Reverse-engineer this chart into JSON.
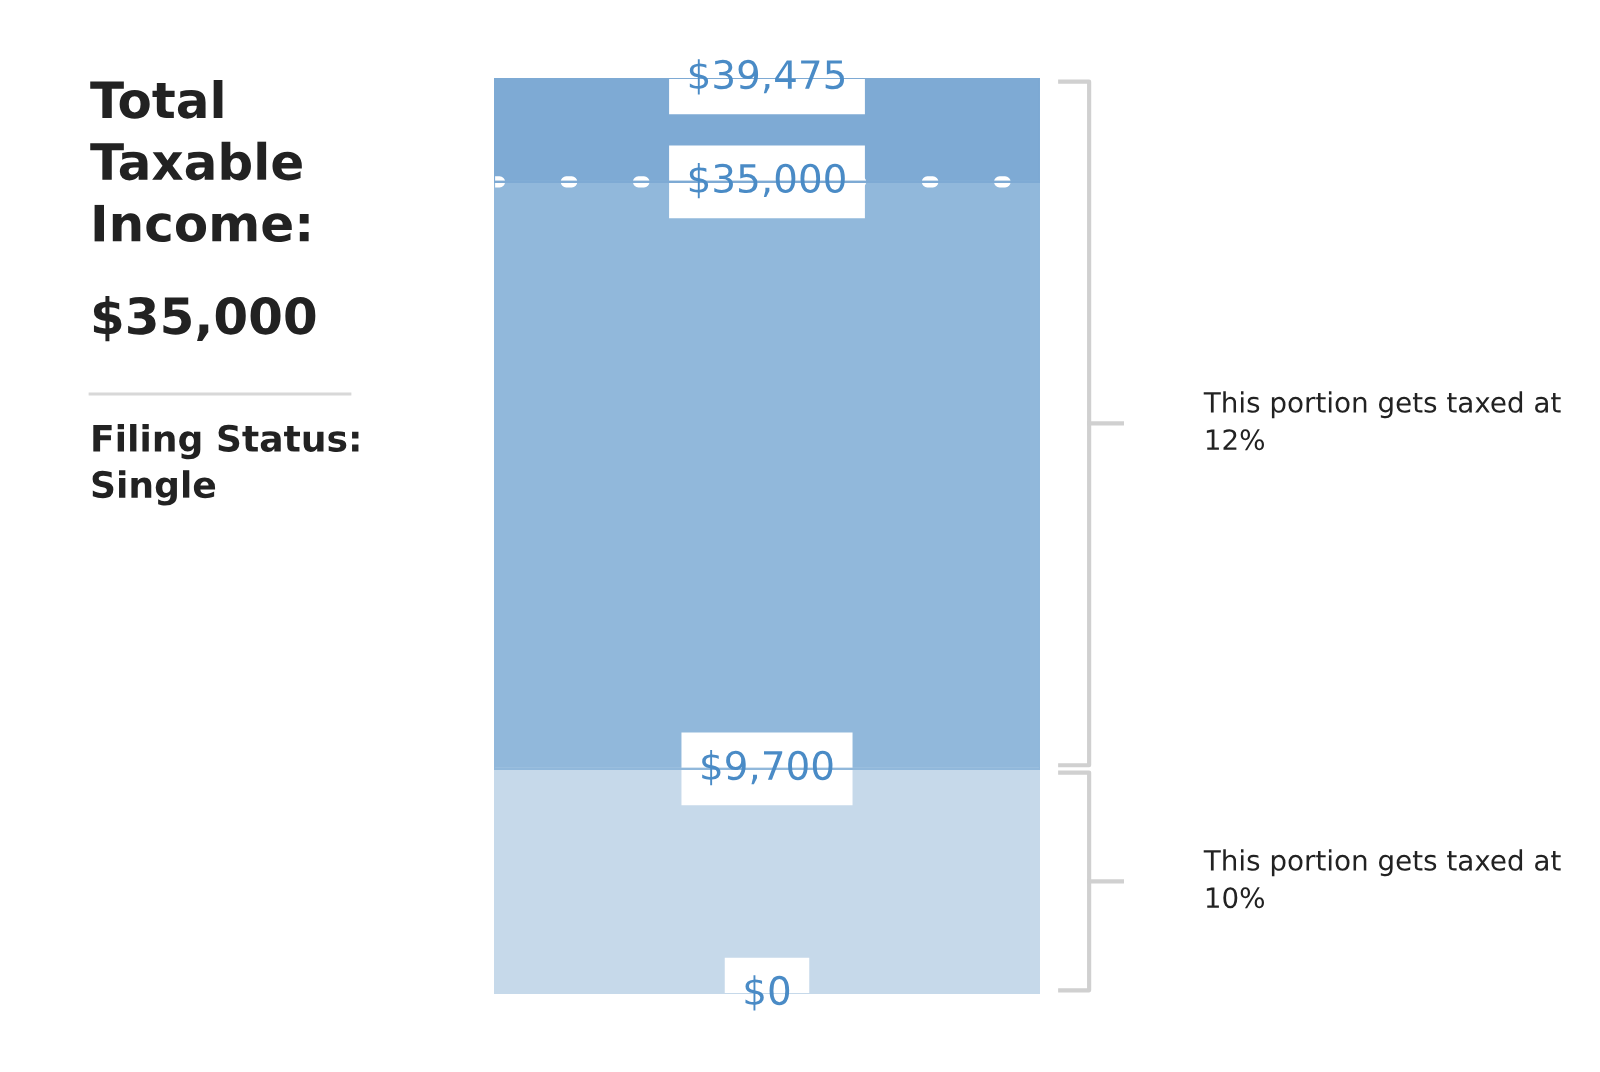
{
  "chart_data": {
    "type": "bar",
    "stacked": true,
    "title": "Total Taxable Income:",
    "annotations": [
      "$35,000",
      "Filing Status: Single",
      "This portion gets taxed at 12%",
      "This portion gets taxed at 10%"
    ],
    "categories": [
      null
    ],
    "series": [
      {
        "color": "#c6d9ea",
        "values": [
          9700
        ]
      },
      {
        "color": "#91b8db",
        "values": [
          25300
        ]
      },
      {
        "color": "#7eaad4",
        "values": [
          4475
        ]
      }
    ],
    "ylim": [
      0,
      39475
    ],
    "yticks": [
      {
        "value": 0,
        "label": "$0"
      },
      {
        "value": 9700,
        "label": "$9,700"
      },
      {
        "value": 35000,
        "label": "$35,000"
      },
      {
        "value": 39475,
        "label": "$39,475"
      }
    ],
    "ref_lines": [
      {
        "axis": "y",
        "value": 35000,
        "color": "#ffffff",
        "line_style": "dotted"
      }
    ],
    "legend": false
  }
}
